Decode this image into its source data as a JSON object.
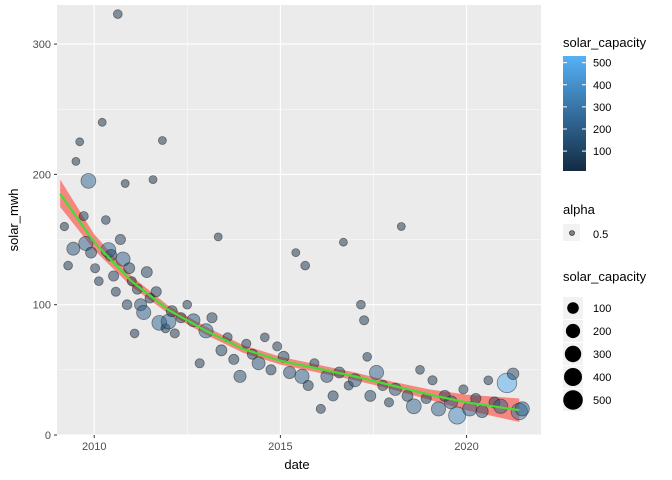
{
  "chart_data": {
    "type": "scatter",
    "title": "",
    "xlabel": "date",
    "ylabel": "solar_mwh",
    "xlim": [
      "2009-01-01",
      "2021-12-31"
    ],
    "ylim": [
      0,
      330
    ],
    "x_ticks": [
      "2010",
      "2015",
      "2020"
    ],
    "y_ticks": [
      "0",
      "100",
      "200",
      "300"
    ],
    "grid": true,
    "legend_placement": "right",
    "legends": {
      "color": {
        "title": "solar_capacity",
        "ticks": [
          "100",
          "200",
          "300",
          "400",
          "500"
        ],
        "range": [
          10,
          530
        ],
        "low": "#132b43",
        "high": "#56b1f7"
      },
      "alpha": {
        "title": "alpha",
        "label": "0.5"
      },
      "size": {
        "title": "solar_capacity",
        "labels": [
          "100",
          "200",
          "300",
          "400",
          "500"
        ]
      }
    },
    "colors": {
      "panel": "#ebebeb",
      "grid": "#ffffff",
      "smooth_ribbon": "#f8766d",
      "smooth_line": "#44dd33",
      "point_stroke": "#1a1a1a"
    },
    "smooth": {
      "x": [
        "2009-02-01",
        "2010-01-01",
        "2011-01-01",
        "2012-01-01",
        "2013-01-01",
        "2014-01-01",
        "2015-01-01",
        "2016-01-01",
        "2017-01-01",
        "2018-01-01",
        "2019-01-01",
        "2020-01-01",
        "2021-06-01"
      ],
      "y": [
        185,
        148,
        118,
        96,
        80,
        66,
        57,
        51,
        45,
        38,
        31,
        25,
        19
      ],
      "lower": [
        175,
        142,
        114,
        93,
        77,
        63,
        54,
        48,
        42,
        35,
        27,
        19,
        10
      ],
      "upper": [
        196,
        154,
        122,
        99,
        83,
        69,
        60,
        54,
        48,
        41,
        35,
        31,
        28
      ]
    },
    "points": [
      {
        "x": "2009-03-15",
        "y": 160,
        "c": 25
      },
      {
        "x": "2009-04-20",
        "y": 130,
        "c": 30
      },
      {
        "x": "2009-06-10",
        "y": 143,
        "c": 150
      },
      {
        "x": "2009-07-05",
        "y": 210,
        "c": 20
      },
      {
        "x": "2009-08-12",
        "y": 225,
        "c": 20
      },
      {
        "x": "2009-09-20",
        "y": 168,
        "c": 40
      },
      {
        "x": "2009-10-10",
        "y": 147,
        "c": 200
      },
      {
        "x": "2009-11-05",
        "y": 195,
        "c": 220
      },
      {
        "x": "2009-12-01",
        "y": 140,
        "c": 80
      },
      {
        "x": "2010-01-10",
        "y": 128,
        "c": 40
      },
      {
        "x": "2010-02-15",
        "y": 118,
        "c": 30
      },
      {
        "x": "2010-03-20",
        "y": 240,
        "c": 20
      },
      {
        "x": "2010-04-25",
        "y": 165,
        "c": 30
      },
      {
        "x": "2010-05-20",
        "y": 142,
        "c": 220
      },
      {
        "x": "2010-06-15",
        "y": 138,
        "c": 100
      },
      {
        "x": "2010-07-10",
        "y": 122,
        "c": 60
      },
      {
        "x": "2010-08-01",
        "y": 110,
        "c": 40
      },
      {
        "x": "2010-08-20",
        "y": 323,
        "c": 30
      },
      {
        "x": "2010-09-15",
        "y": 150,
        "c": 60
      },
      {
        "x": "2010-10-10",
        "y": 135,
        "c": 200
      },
      {
        "x": "2010-11-01",
        "y": 193,
        "c": 20
      },
      {
        "x": "2010-11-20",
        "y": 100,
        "c": 50
      },
      {
        "x": "2010-12-10",
        "y": 128,
        "c": 80
      },
      {
        "x": "2011-01-05",
        "y": 118,
        "c": 40
      },
      {
        "x": "2011-02-01",
        "y": 78,
        "c": 30
      },
      {
        "x": "2011-03-01",
        "y": 112,
        "c": 60
      },
      {
        "x": "2011-04-01",
        "y": 100,
        "c": 120
      },
      {
        "x": "2011-05-01",
        "y": 94,
        "c": 200
      },
      {
        "x": "2011-06-01",
        "y": 125,
        "c": 80
      },
      {
        "x": "2011-07-01",
        "y": 105,
        "c": 50
      },
      {
        "x": "2011-08-01",
        "y": 196,
        "c": 20
      },
      {
        "x": "2011-09-01",
        "y": 110,
        "c": 60
      },
      {
        "x": "2011-10-01",
        "y": 86,
        "c": 220
      },
      {
        "x": "2011-11-01",
        "y": 226,
        "c": 20
      },
      {
        "x": "2011-12-01",
        "y": 82,
        "c": 40
      },
      {
        "x": "2012-01-01",
        "y": 87,
        "c": 220
      },
      {
        "x": "2012-02-01",
        "y": 95,
        "c": 80
      },
      {
        "x": "2012-03-01",
        "y": 78,
        "c": 40
      },
      {
        "x": "2012-05-01",
        "y": 90,
        "c": 60
      },
      {
        "x": "2012-07-01",
        "y": 100,
        "c": 30
      },
      {
        "x": "2012-09-01",
        "y": 88,
        "c": 150
      },
      {
        "x": "2012-11-01",
        "y": 55,
        "c": 40
      },
      {
        "x": "2013-01-01",
        "y": 80,
        "c": 200
      },
      {
        "x": "2013-03-01",
        "y": 90,
        "c": 60
      },
      {
        "x": "2013-05-01",
        "y": 152,
        "c": 20
      },
      {
        "x": "2013-06-01",
        "y": 65,
        "c": 80
      },
      {
        "x": "2013-08-01",
        "y": 75,
        "c": 40
      },
      {
        "x": "2013-10-01",
        "y": 58,
        "c": 60
      },
      {
        "x": "2013-12-01",
        "y": 45,
        "c": 120
      },
      {
        "x": "2014-02-01",
        "y": 70,
        "c": 40
      },
      {
        "x": "2014-04-01",
        "y": 62,
        "c": 60
      },
      {
        "x": "2014-06-01",
        "y": 55,
        "c": 150
      },
      {
        "x": "2014-08-01",
        "y": 75,
        "c": 30
      },
      {
        "x": "2014-10-01",
        "y": 50,
        "c": 60
      },
      {
        "x": "2014-12-01",
        "y": 68,
        "c": 40
      },
      {
        "x": "2015-02-01",
        "y": 60,
        "c": 80
      },
      {
        "x": "2015-04-01",
        "y": 48,
        "c": 120
      },
      {
        "x": "2015-06-01",
        "y": 140,
        "c": 20
      },
      {
        "x": "2015-08-01",
        "y": 45,
        "c": 200
      },
      {
        "x": "2015-09-01",
        "y": 130,
        "c": 30
      },
      {
        "x": "2015-10-01",
        "y": 38,
        "c": 60
      },
      {
        "x": "2015-12-01",
        "y": 55,
        "c": 40
      },
      {
        "x": "2016-02-01",
        "y": 20,
        "c": 40
      },
      {
        "x": "2016-04-01",
        "y": 45,
        "c": 120
      },
      {
        "x": "2016-06-01",
        "y": 30,
        "c": 60
      },
      {
        "x": "2016-08-01",
        "y": 48,
        "c": 80
      },
      {
        "x": "2016-09-10",
        "y": 148,
        "c": 20
      },
      {
        "x": "2016-11-01",
        "y": 38,
        "c": 40
      },
      {
        "x": "2017-01-01",
        "y": 42,
        "c": 150
      },
      {
        "x": "2017-03-01",
        "y": 100,
        "c": 30
      },
      {
        "x": "2017-04-01",
        "y": 88,
        "c": 40
      },
      {
        "x": "2017-05-01",
        "y": 60,
        "c": 30
      },
      {
        "x": "2017-06-01",
        "y": 30,
        "c": 80
      },
      {
        "x": "2017-08-01",
        "y": 48,
        "c": 200
      },
      {
        "x": "2017-10-01",
        "y": 38,
        "c": 60
      },
      {
        "x": "2017-12-01",
        "y": 25,
        "c": 40
      },
      {
        "x": "2018-02-01",
        "y": 35,
        "c": 120
      },
      {
        "x": "2018-04-01",
        "y": 160,
        "c": 20
      },
      {
        "x": "2018-06-01",
        "y": 30,
        "c": 80
      },
      {
        "x": "2018-08-01",
        "y": 22,
        "c": 220
      },
      {
        "x": "2018-10-01",
        "y": 50,
        "c": 30
      },
      {
        "x": "2018-12-01",
        "y": 28,
        "c": 60
      },
      {
        "x": "2019-02-01",
        "y": 42,
        "c": 40
      },
      {
        "x": "2019-04-01",
        "y": 20,
        "c": 200
      },
      {
        "x": "2019-06-01",
        "y": 30,
        "c": 80
      },
      {
        "x": "2019-08-01",
        "y": 25,
        "c": 150
      },
      {
        "x": "2019-10-01",
        "y": 15,
        "c": 350
      },
      {
        "x": "2019-12-01",
        "y": 35,
        "c": 40
      },
      {
        "x": "2020-02-01",
        "y": 20,
        "c": 200
      },
      {
        "x": "2020-04-01",
        "y": 28,
        "c": 60
      },
      {
        "x": "2020-06-01",
        "y": 18,
        "c": 120
      },
      {
        "x": "2020-08-01",
        "y": 42,
        "c": 30
      },
      {
        "x": "2020-10-01",
        "y": 25,
        "c": 80
      },
      {
        "x": "2020-12-01",
        "y": 22,
        "c": 200
      },
      {
        "x": "2021-02-01",
        "y": 40,
        "c": 500
      },
      {
        "x": "2021-04-01",
        "y": 47,
        "c": 100
      },
      {
        "x": "2021-06-01",
        "y": 18,
        "c": 300
      },
      {
        "x": "2021-07-01",
        "y": 20,
        "c": 200
      }
    ]
  }
}
